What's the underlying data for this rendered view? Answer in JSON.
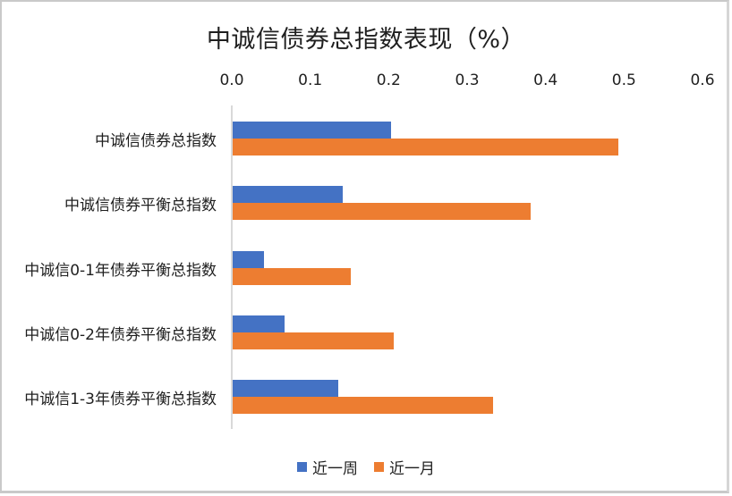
{
  "chart_data": {
    "type": "bar",
    "orientation": "horizontal",
    "title": "中诚信债券总指数表现（%）",
    "xlabel": "",
    "ylabel": "",
    "xlim": [
      0,
      0.6
    ],
    "x_ticks": [
      "0.0",
      "0.1",
      "0.2",
      "0.3",
      "0.4",
      "0.5",
      "0.6"
    ],
    "x_axis_position": "top",
    "grid": false,
    "legend_position": "bottom",
    "categories": [
      "中诚信债券总指数",
      "中诚信债券平衡总指数",
      "中诚信0-1年债券平衡总指数",
      "中诚信0-2年债券平衡总指数",
      "中诚信1-3年债券平衡总指数"
    ],
    "series": [
      {
        "name": "近一周",
        "color": "#4472C4",
        "values": [
          0.202,
          0.14,
          0.04,
          0.066,
          0.135
        ]
      },
      {
        "name": "近一月",
        "color": "#ED7D31",
        "values": [
          0.492,
          0.38,
          0.151,
          0.205,
          0.332
        ]
      }
    ]
  },
  "legend": {
    "items": [
      {
        "label": "近一周",
        "color": "#4472C4"
      },
      {
        "label": "近一月",
        "color": "#ED7D31"
      }
    ]
  }
}
